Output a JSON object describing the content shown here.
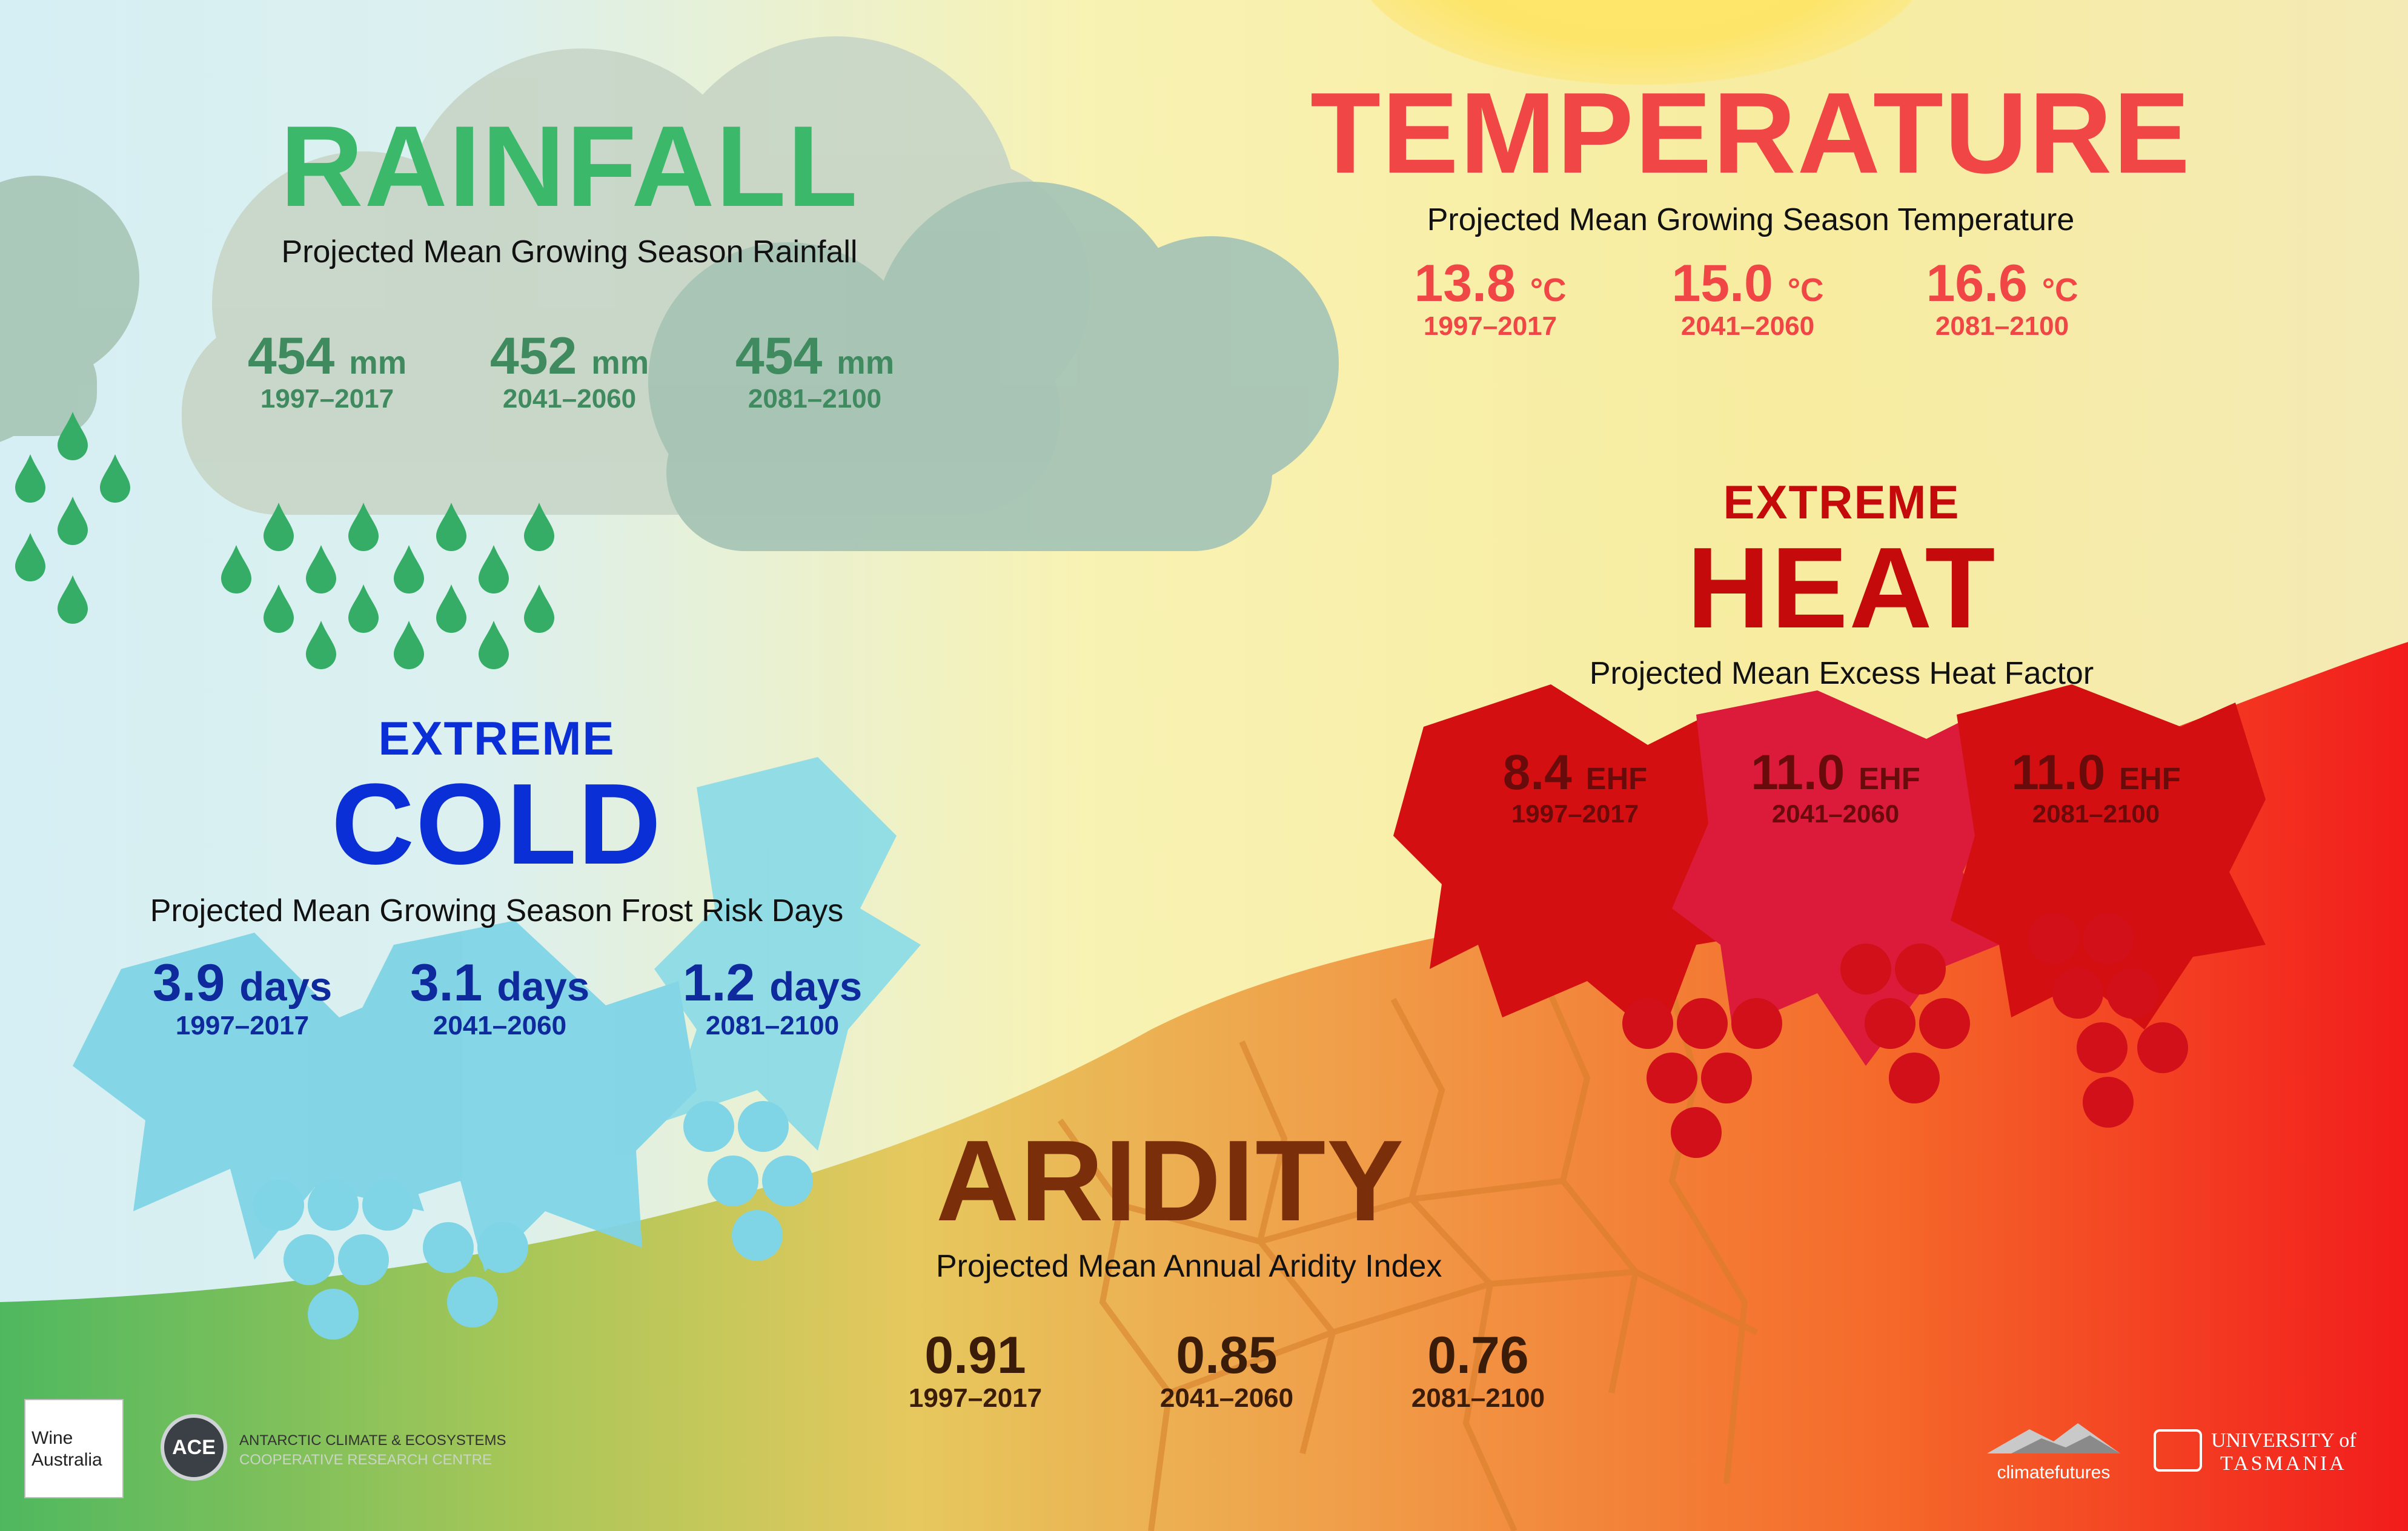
{
  "colors": {
    "rain_green": "#3cb86b",
    "rain_value": "#3f8a5e",
    "temp_red": "#f04646",
    "heat_red": "#c40a0a",
    "cold_blue": "#0b2fd6",
    "cold_value": "#0e2a9c",
    "aridity_brown": "#7a2f0a",
    "aridity_value": "#3a1c08"
  },
  "rainfall": {
    "title": "RAINFALL",
    "subtitle": "Projected Mean Growing Season Rainfall",
    "stats": [
      {
        "value": "454",
        "unit": "mm",
        "period": "1997–2017"
      },
      {
        "value": "452",
        "unit": "mm",
        "period": "2041–2060"
      },
      {
        "value": "454",
        "unit": "mm",
        "period": "2081–2100"
      }
    ]
  },
  "temperature": {
    "title": "TEMPERATURE",
    "subtitle": "Projected Mean Growing Season Temperature",
    "stats": [
      {
        "value": "13.8",
        "unit": "°C",
        "period": "1997–2017"
      },
      {
        "value": "15.0",
        "unit": "°C",
        "period": "2041–2060"
      },
      {
        "value": "16.6",
        "unit": "°C",
        "period": "2081–2100"
      }
    ]
  },
  "heat": {
    "kicker": "EXTREME",
    "title": "HEAT",
    "subtitle": "Projected Mean Excess Heat Factor",
    "stats": [
      {
        "value": "8.4",
        "unit": "EHF",
        "period": "1997–2017"
      },
      {
        "value": "11.0",
        "unit": "EHF",
        "period": "2041–2060"
      },
      {
        "value": "11.0",
        "unit": "EHF",
        "period": "2081–2100"
      }
    ]
  },
  "cold": {
    "kicker": "EXTREME",
    "title": "COLD",
    "subtitle": "Projected Mean Growing Season Frost Risk Days",
    "stats": [
      {
        "value": "3.9",
        "unit": "days",
        "period": "1997–2017"
      },
      {
        "value": "3.1",
        "unit": "days",
        "period": "2041–2060"
      },
      {
        "value": "1.2",
        "unit": "days",
        "period": "2081–2100"
      }
    ]
  },
  "aridity": {
    "title": "ARIDITY",
    "subtitle": "Projected Mean Annual Aridity Index",
    "stats": [
      {
        "value": "0.91",
        "period": "1997–2017"
      },
      {
        "value": "0.85",
        "period": "2041–2060"
      },
      {
        "value": "0.76",
        "period": "2081–2100"
      }
    ]
  },
  "logos": {
    "wine_australia": "Wine Australia",
    "ace_badge": "ACE",
    "ace_line1": "ANTARCTIC CLIMATE & ECOSYSTEMS",
    "ace_line2": "COOPERATIVE RESEARCH CENTRE",
    "climate_futures": "climatefutures",
    "utas_line1": "UNIVERSITY of",
    "utas_line2": "TASMANIA"
  }
}
